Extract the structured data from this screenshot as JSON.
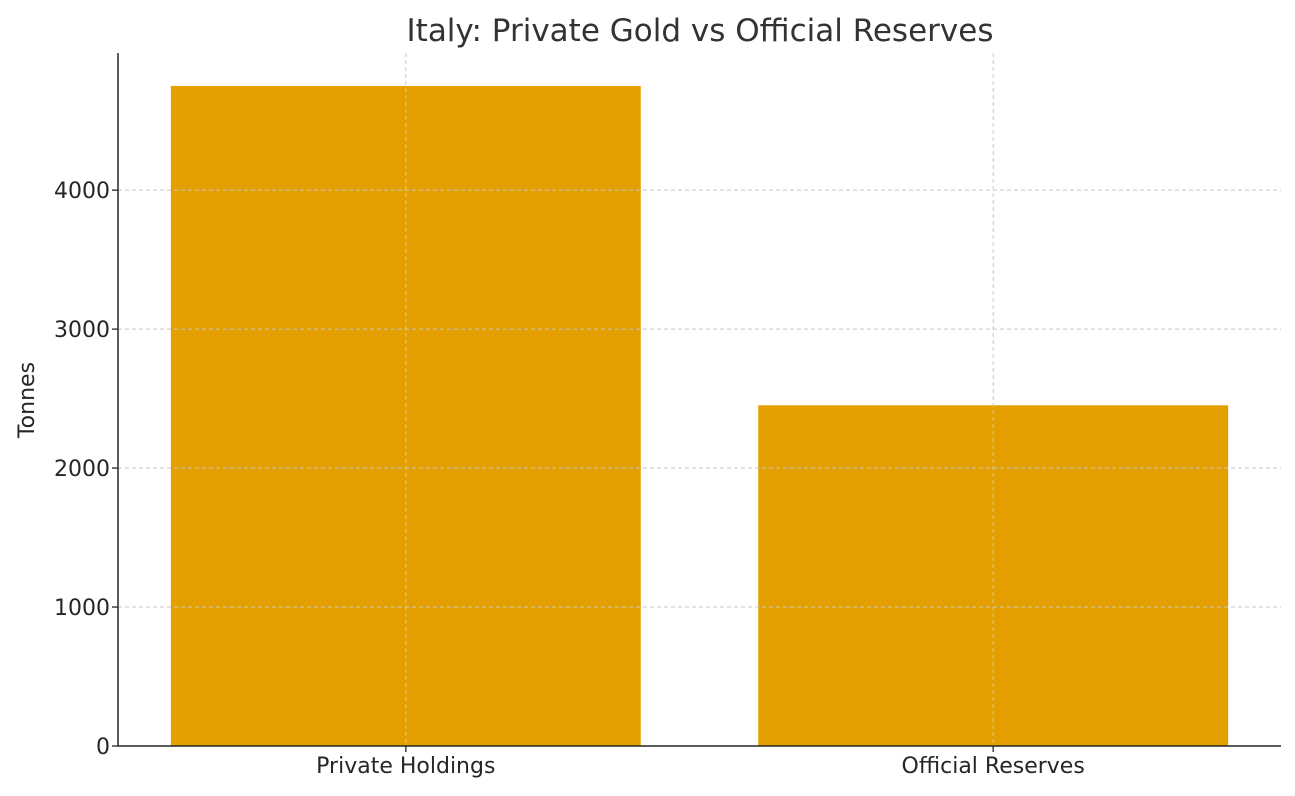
{
  "chart_data": {
    "type": "bar",
    "title": "Italy: Private Gold vs Official Reserves",
    "xlabel": "",
    "ylabel": "Tonnes",
    "categories": [
      "Private Holdings",
      "Official Reserves"
    ],
    "values": [
      4750,
      2452
    ],
    "ylim": [
      0,
      4987
    ],
    "yticks": [
      0,
      1000,
      2000,
      3000,
      4000
    ],
    "grid": true,
    "bar_color": "#E49F00"
  }
}
